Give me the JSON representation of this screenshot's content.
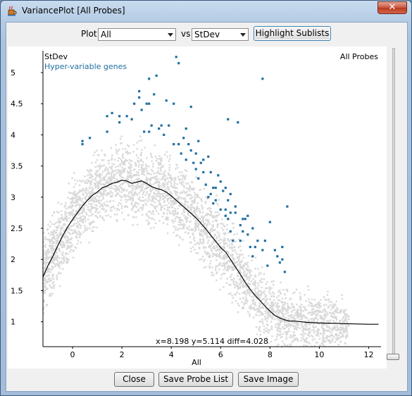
{
  "window": {
    "title": "VariancePlot [All Probes]",
    "close_glyph": "✕",
    "app_icon": "java-cup-icon"
  },
  "toolbar": {
    "plot_label": "Plot",
    "plot_value": "All",
    "vs_label": "vs",
    "vs_value": "StDev",
    "highlight_button": "Highlight Sublists"
  },
  "buttons": {
    "close": "Close",
    "save_probe_list": "Save Probe List",
    "save_image": "Save Image"
  },
  "plot": {
    "y_axis_title": "StDev",
    "subtitle": "Hyper-variable genes",
    "dataset_label": "All Probes",
    "x_axis_title": "All",
    "readout": "x=8.198 y=5.114 diff=4.028",
    "colors": {
      "background_points": "#d9d9d9",
      "highlight_points": "#1f6fa0",
      "line": "#000000",
      "subtitle": "#1f6fa0"
    }
  },
  "chart_data": {
    "type": "scatter",
    "xlabel": "All",
    "ylabel": "StDev",
    "xlim": [
      -1.2,
      12.5
    ],
    "ylim": [
      0.6,
      5.35
    ],
    "x_ticks": [
      0,
      2,
      4,
      6,
      8,
      10,
      12
    ],
    "y_ticks": [
      1,
      1.5,
      2,
      2.5,
      3,
      3.5,
      4,
      4.5,
      5
    ],
    "series": [
      {
        "name": "Hyper-variable genes",
        "points": [
          [
            0.4,
            3.9
          ],
          [
            0.4,
            3.85
          ],
          [
            0.7,
            3.95
          ],
          [
            1.4,
            4.3
          ],
          [
            1.4,
            4.05
          ],
          [
            1.6,
            4.35
          ],
          [
            1.9,
            4.2
          ],
          [
            1.9,
            4.3
          ],
          [
            2.2,
            4.3
          ],
          [
            2.4,
            4.25
          ],
          [
            2.5,
            4.5
          ],
          [
            2.7,
            4.6
          ],
          [
            2.7,
            4.7
          ],
          [
            2.8,
            4.4
          ],
          [
            2.9,
            4.05
          ],
          [
            3.0,
            4.5
          ],
          [
            3.1,
            4.5
          ],
          [
            3.1,
            4.9
          ],
          [
            3.1,
            4.05
          ],
          [
            3.2,
            4.15
          ],
          [
            3.3,
            4.65
          ],
          [
            3.4,
            4.95
          ],
          [
            3.5,
            4.1
          ],
          [
            3.6,
            4.15
          ],
          [
            3.7,
            4.0
          ],
          [
            3.8,
            4.55
          ],
          [
            3.9,
            4.15
          ],
          [
            4.1,
            3.85
          ],
          [
            4.1,
            4.5
          ],
          [
            4.2,
            5.25
          ],
          [
            4.3,
            3.85
          ],
          [
            4.3,
            5.15
          ],
          [
            4.4,
            3.7
          ],
          [
            4.5,
            3.95
          ],
          [
            4.6,
            3.6
          ],
          [
            4.6,
            4.1
          ],
          [
            4.7,
            3.85
          ],
          [
            4.8,
            4.45
          ],
          [
            4.8,
            3.75
          ],
          [
            4.9,
            3.55
          ],
          [
            5.0,
            3.45
          ],
          [
            5.0,
            3.7
          ],
          [
            5.1,
            3.3
          ],
          [
            5.1,
            3.9
          ],
          [
            5.2,
            3.55
          ],
          [
            5.3,
            3.6
          ],
          [
            5.3,
            3.4
          ],
          [
            5.4,
            3.2
          ],
          [
            5.5,
            3.65
          ],
          [
            5.5,
            3.0
          ],
          [
            5.6,
            3.4
          ],
          [
            5.6,
            3.05
          ],
          [
            5.7,
            3.15
          ],
          [
            5.7,
            2.9
          ],
          [
            5.8,
            3.15
          ],
          [
            5.8,
            2.95
          ],
          [
            5.9,
            3.35
          ],
          [
            6.0,
            3.25
          ],
          [
            6.0,
            2.8
          ],
          [
            6.1,
            3.1
          ],
          [
            6.2,
            3.15
          ],
          [
            6.2,
            2.8
          ],
          [
            6.2,
            2.7
          ],
          [
            6.3,
            2.95
          ],
          [
            6.3,
            2.65
          ],
          [
            6.3,
            4.25
          ],
          [
            6.4,
            2.45
          ],
          [
            6.4,
            3.05
          ],
          [
            6.4,
            2.75
          ],
          [
            6.5,
            2.3
          ],
          [
            6.6,
            2.85
          ],
          [
            6.6,
            2.75
          ],
          [
            6.7,
            4.2
          ],
          [
            6.8,
            2.3
          ],
          [
            6.8,
            2.55
          ],
          [
            6.9,
            2.65
          ],
          [
            6.9,
            2.45
          ],
          [
            7.0,
            2.65
          ],
          [
            7.1,
            2.7
          ],
          [
            7.1,
            2.4
          ],
          [
            7.2,
            2.2
          ],
          [
            7.3,
            2.05
          ],
          [
            7.3,
            2.5
          ],
          [
            7.4,
            2.2
          ],
          [
            7.5,
            2.3
          ],
          [
            7.7,
            2.15
          ],
          [
            7.7,
            4.9
          ],
          [
            7.8,
            2.3
          ],
          [
            7.9,
            1.9
          ],
          [
            8.0,
            2.6
          ],
          [
            8.2,
            2.15
          ],
          [
            8.3,
            2.05
          ],
          [
            8.4,
            1.95
          ],
          [
            8.5,
            2.2
          ],
          [
            8.5,
            2.0
          ],
          [
            8.6,
            1.8
          ],
          [
            8.7,
            2.85
          ]
        ]
      }
    ],
    "line": {
      "x": [
        -1.2,
        -1.0,
        -0.8,
        -0.6,
        -0.4,
        -0.2,
        0.0,
        0.2,
        0.4,
        0.6,
        0.8,
        1.0,
        1.2,
        1.4,
        1.6,
        1.8,
        2.0,
        2.2,
        2.4,
        2.6,
        2.8,
        3.0,
        3.2,
        3.4,
        3.6,
        3.8,
        4.0,
        4.2,
        4.4,
        4.6,
        4.8,
        5.0,
        5.2,
        5.4,
        5.6,
        5.8,
        6.0,
        6.2,
        6.4,
        6.6,
        6.8,
        7.0,
        7.2,
        7.4,
        7.6,
        7.8,
        8.0,
        8.2,
        8.4,
        8.6,
        8.8,
        9.0,
        9.5,
        10.0,
        11.0,
        12.0,
        12.4
      ],
      "y": [
        1.72,
        1.9,
        2.05,
        2.22,
        2.38,
        2.52,
        2.64,
        2.75,
        2.86,
        2.95,
        3.03,
        3.08,
        3.15,
        3.18,
        3.22,
        3.24,
        3.27,
        3.26,
        3.22,
        3.24,
        3.26,
        3.22,
        3.17,
        3.14,
        3.12,
        3.08,
        3.02,
        2.95,
        2.88,
        2.81,
        2.74,
        2.67,
        2.58,
        2.49,
        2.39,
        2.29,
        2.19,
        2.12,
        2.0,
        1.88,
        1.76,
        1.63,
        1.52,
        1.42,
        1.34,
        1.25,
        1.17,
        1.1,
        1.06,
        1.03,
        1.01,
        1.01,
        0.99,
        0.98,
        0.97,
        0.96,
        0.96
      ]
    }
  }
}
